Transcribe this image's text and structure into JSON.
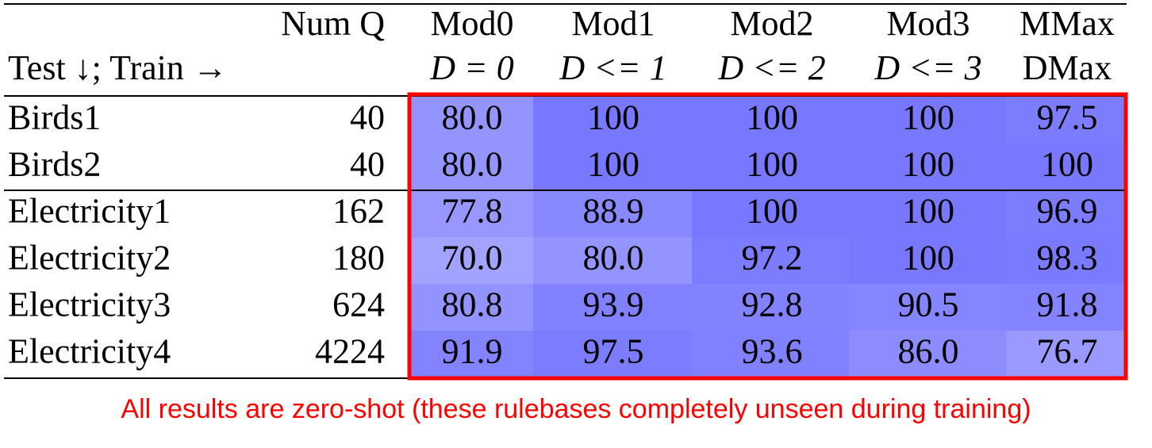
{
  "table": {
    "header_top": [
      "Num Q",
      "Mod0",
      "Mod1",
      "Mod2",
      "Mod3",
      "MMax"
    ],
    "header_bottom": [
      "Test ↓; Train →",
      "D = 0",
      "D <= 1",
      "D <= 2",
      "D <= 3",
      "DMax"
    ],
    "rows": [
      {
        "name": "Birds1",
        "num_q": "40",
        "scores": [
          "80.0",
          "100",
          "100",
          "100",
          "97.5"
        ]
      },
      {
        "name": "Birds2",
        "num_q": "40",
        "scores": [
          "80.0",
          "100",
          "100",
          "100",
          "100"
        ]
      },
      {
        "name": "Electricity1",
        "num_q": "162",
        "scores": [
          "77.8",
          "88.9",
          "100",
          "100",
          "96.9"
        ]
      },
      {
        "name": "Electricity2",
        "num_q": "180",
        "scores": [
          "70.0",
          "80.0",
          "97.2",
          "100",
          "98.3"
        ]
      },
      {
        "name": "Electricity3",
        "num_q": "624",
        "scores": [
          "80.8",
          "93.9",
          "92.8",
          "90.5",
          "91.8"
        ]
      },
      {
        "name": "Electricity4",
        "num_q": "4224",
        "scores": [
          "91.9",
          "97.5",
          "93.6",
          "86.0",
          "76.7"
        ]
      }
    ]
  },
  "caption": "All results are zero-shot (these rulebases completely unseen during training)"
}
